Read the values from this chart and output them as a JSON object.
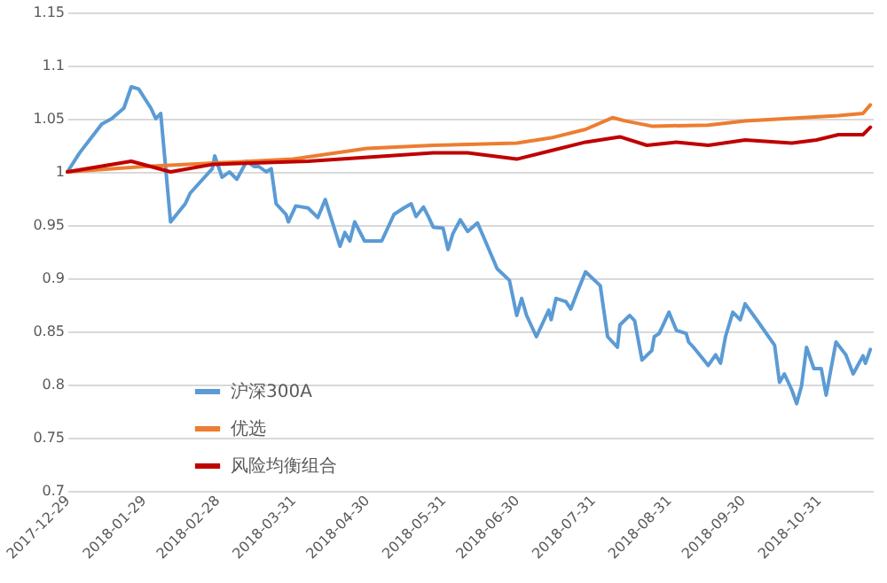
{
  "chart_data": {
    "type": "line",
    "xlim": [
      "2017-12-29",
      "2018-11-22"
    ],
    "xticks": [
      "2017-12-29",
      "2018-01-29",
      "2018-02-28",
      "2018-03-31",
      "2018-04-30",
      "2018-05-31",
      "2018-06-30",
      "2018-07-31",
      "2018-08-31",
      "2018-09-30",
      "2018-10-31"
    ],
    "ylim": [
      0.7,
      1.15
    ],
    "yticks": [
      0.7,
      0.75,
      0.8,
      0.85,
      0.9,
      0.95,
      1,
      1.05,
      1.1,
      1.15
    ],
    "grid": "y",
    "legend": "bottom left",
    "series": [
      {
        "name": "沪深300A",
        "color": "#5b9bd5",
        "x": [
          "2017-12-29",
          "2018-01-03",
          "2018-01-07",
          "2018-01-12",
          "2018-01-16",
          "2018-01-21",
          "2018-01-24",
          "2018-01-27",
          "2018-02-01",
          "2018-02-03",
          "2018-02-05",
          "2018-02-09",
          "2018-02-15",
          "2018-02-17",
          "2018-02-26",
          "2018-02-27",
          "2018-03-02",
          "2018-03-05",
          "2018-03-08",
          "2018-03-12",
          "2018-03-15",
          "2018-03-17",
          "2018-03-20",
          "2018-03-22",
          "2018-03-24",
          "2018-03-28",
          "2018-03-29",
          "2018-04-01",
          "2018-04-06",
          "2018-04-10",
          "2018-04-13",
          "2018-04-19",
          "2018-04-21",
          "2018-04-23",
          "2018-04-25",
          "2018-04-29",
          "2018-05-06",
          "2018-05-11",
          "2018-05-15",
          "2018-05-18",
          "2018-05-20",
          "2018-05-23",
          "2018-05-25",
          "2018-05-27",
          "2018-05-31",
          "2018-06-02",
          "2018-06-04",
          "2018-06-07",
          "2018-06-10",
          "2018-06-14",
          "2018-06-17",
          "2018-06-22",
          "2018-06-27",
          "2018-06-30",
          "2018-07-02",
          "2018-07-04",
          "2018-07-08",
          "2018-07-13",
          "2018-07-14",
          "2018-07-16",
          "2018-07-20",
          "2018-07-22",
          "2018-07-25",
          "2018-07-28",
          "2018-08-03",
          "2018-08-06",
          "2018-08-10",
          "2018-08-11",
          "2018-08-15",
          "2018-08-17",
          "2018-08-20",
          "2018-08-24",
          "2018-08-25",
          "2018-08-27",
          "2018-08-31",
          "2018-09-03",
          "2018-09-07",
          "2018-09-08",
          "2018-09-10",
          "2018-09-16",
          "2018-09-19",
          "2018-09-21",
          "2018-09-23",
          "2018-09-26",
          "2018-09-29",
          "2018-10-01",
          "2018-10-06",
          "2018-10-13",
          "2018-10-15",
          "2018-10-17",
          "2018-10-20",
          "2018-10-22",
          "2018-10-24",
          "2018-10-26",
          "2018-10-29",
          "2018-11-01",
          "2018-11-03",
          "2018-11-07",
          "2018-11-11",
          "2018-11-14",
          "2018-11-18",
          "2018-11-19",
          "2018-11-21"
        ],
        "values": [
          1.0,
          1.018,
          1.03,
          1.045,
          1.05,
          1.06,
          1.08,
          1.078,
          1.06,
          1.05,
          1.055,
          0.953,
          0.97,
          0.98,
          1.003,
          1.015,
          0.995,
          1.0,
          0.993,
          1.01,
          1.005,
          1.005,
          1.0,
          1.003,
          0.97,
          0.96,
          0.953,
          0.968,
          0.966,
          0.957,
          0.974,
          0.93,
          0.943,
          0.935,
          0.953,
          0.935,
          0.935,
          0.96,
          0.966,
          0.97,
          0.958,
          0.967,
          0.958,
          0.948,
          0.947,
          0.927,
          0.942,
          0.955,
          0.944,
          0.952,
          0.936,
          0.909,
          0.898,
          0.865,
          0.881,
          0.865,
          0.845,
          0.87,
          0.861,
          0.881,
          0.878,
          0.871,
          0.889,
          0.906,
          0.893,
          0.845,
          0.835,
          0.856,
          0.865,
          0.86,
          0.823,
          0.832,
          0.845,
          0.848,
          0.868,
          0.851,
          0.848,
          0.84,
          0.835,
          0.818,
          0.828,
          0.82,
          0.845,
          0.868,
          0.861,
          0.876,
          0.86,
          0.837,
          0.802,
          0.81,
          0.795,
          0.782,
          0.799,
          0.835,
          0.815,
          0.815,
          0.79,
          0.84,
          0.828,
          0.81,
          0.827,
          0.82,
          0.833
        ]
      },
      {
        "name": "优选",
        "color": "#ed7d31",
        "x": [
          "2017-12-29",
          "2018-01-29",
          "2018-03-31",
          "2018-04-30",
          "2018-05-27",
          "2018-06-30",
          "2018-07-14",
          "2018-07-28",
          "2018-08-08",
          "2018-08-13",
          "2018-08-24",
          "2018-09-16",
          "2018-10-01",
          "2018-11-08",
          "2018-11-18",
          "2018-11-21"
        ],
        "values": [
          1.0,
          1.005,
          1.012,
          1.022,
          1.025,
          1.027,
          1.032,
          1.04,
          1.051,
          1.048,
          1.043,
          1.044,
          1.048,
          1.053,
          1.055,
          1.063
        ]
      },
      {
        "name": "风险均衡组合",
        "color": "#c00000",
        "x": [
          "2017-12-29",
          "2018-01-24",
          "2018-02-09",
          "2018-02-26",
          "2018-04-06",
          "2018-05-27",
          "2018-06-10",
          "2018-06-30",
          "2018-07-14",
          "2018-07-28",
          "2018-08-11",
          "2018-08-22",
          "2018-09-03",
          "2018-09-16",
          "2018-10-01",
          "2018-10-20",
          "2018-10-30",
          "2018-11-08",
          "2018-11-18",
          "2018-11-21"
        ],
        "values": [
          1.0,
          1.01,
          1.0,
          1.007,
          1.01,
          1.018,
          1.018,
          1.012,
          1.02,
          1.028,
          1.033,
          1.025,
          1.028,
          1.025,
          1.03,
          1.027,
          1.03,
          1.035,
          1.035,
          1.042
        ]
      }
    ]
  }
}
